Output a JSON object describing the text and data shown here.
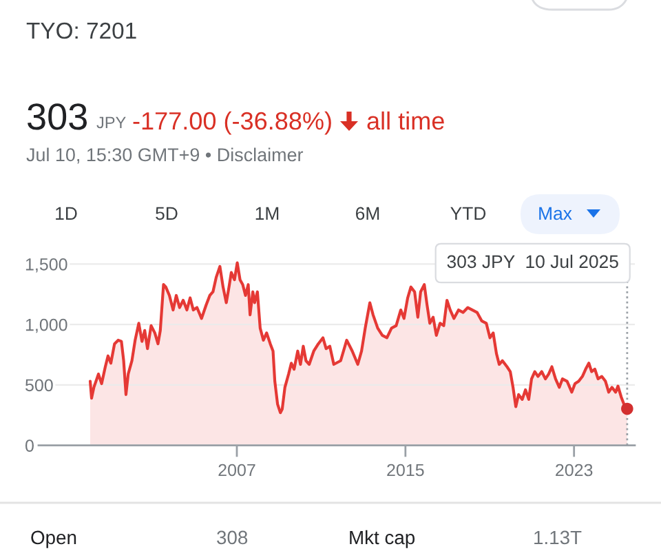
{
  "chart_data": {
    "type": "area",
    "title": "TYO: 7201",
    "annotations": [
      "303",
      "JPY",
      "-177.00 (-36.88%)",
      "all time",
      "Jul 10, 15:30 GMT+9 • Disclaimer",
      "1D",
      "5D",
      "1M",
      "6M",
      "YTD",
      "Max",
      "Open",
      "308",
      "Mkt cap",
      "1.13T"
    ],
    "series": [
      {
        "color": "#e53935",
        "x": [
          "2000-01-16",
          "2000-02-09",
          "2000-03-20",
          "2000-06-07",
          "2000-08-01",
          "2000-10-04",
          "2000-11-20",
          "2001-01-08",
          "2001-03-13",
          "2001-05-15",
          "2001-07-10",
          "2001-08-18",
          "2001-09-27",
          "2001-11-05",
          "2002-01-08",
          "2002-03-05",
          "2002-05-07",
          "2002-07-02",
          "2002-08-18",
          "2002-10-05",
          "2002-12-07",
          "2003-02-09",
          "2003-04-05",
          "2003-05-15",
          "2003-07-10",
          "2003-08-18",
          "2003-10-20",
          "2003-12-23",
          "2004-02-16",
          "2004-04-13",
          "2004-06-15",
          "2004-08-18",
          "2004-10-13",
          "2004-12-07",
          "2005-02-09",
          "2005-04-29",
          "2005-07-17",
          "2005-09-19",
          "2005-11-13",
          "2006-01-08",
          "2006-03-13",
          "2006-05-07",
          "2006-07-02",
          "2006-08-18",
          "2006-09-27",
          "2006-11-21",
          "2007-01-08",
          "2007-02-25",
          "2007-04-13",
          "2007-05-31",
          "2007-07-17",
          "2007-08-18",
          "2007-10-05",
          "2007-11-05",
          "2007-12-23",
          "2008-02-09",
          "2008-04-05",
          "2008-05-31",
          "2008-08-02",
          "2008-09-19",
          "2008-10-20",
          "2008-12-07",
          "2009-01-24",
          "2009-02-25",
          "2009-04-13",
          "2009-06-16",
          "2009-08-02",
          "2009-09-19",
          "2009-11-21",
          "2010-01-08",
          "2010-02-25",
          "2010-04-13",
          "2010-06-08",
          "2010-08-26",
          "2010-11-13",
          "2011-02-01",
          "2011-03-28",
          "2011-05-31",
          "2011-08-08",
          "2011-12-05",
          "2012-03-19",
          "2012-06-23",
          "2012-09-27",
          "2012-12-01",
          "2013-02-03",
          "2013-04-24",
          "2013-06-19",
          "2013-09-07",
          "2013-11-26",
          "2014-02-14",
          "2014-05-05",
          "2014-07-24",
          "2014-10-12",
          "2014-12-07",
          "2015-02-09",
          "2015-04-06",
          "2015-06-09",
          "2015-08-04",
          "2015-09-21",
          "2015-11-24",
          "2016-01-11",
          "2016-02-28",
          "2016-04-25",
          "2016-06-20",
          "2016-08-23",
          "2016-10-26",
          "2016-12-21",
          "2017-02-15",
          "2017-04-21",
          "2017-07-10",
          "2017-09-27",
          "2017-12-17",
          "2018-03-07",
          "2018-05-26",
          "2018-08-14",
          "2018-11-02",
          "2019-01-05",
          "2019-03-02",
          "2019-04-27",
          "2019-06-14",
          "2019-08-09",
          "2019-10-28",
          "2019-12-23",
          "2020-02-09",
          "2020-03-28",
          "2020-05-15",
          "2020-07-18",
          "2020-09-12",
          "2020-11-07",
          "2020-12-26",
          "2021-02-20",
          "2021-04-17",
          "2021-06-20",
          "2021-08-23",
          "2021-10-18",
          "2021-12-13",
          "2022-02-15",
          "2022-04-21",
          "2022-06-15",
          "2022-09-03",
          "2022-11-23",
          "2023-01-18",
          "2023-03-23",
          "2023-05-26",
          "2023-07-21",
          "2023-09-15",
          "2023-11-02",
          "2023-12-28",
          "2024-02-22",
          "2024-04-26",
          "2024-06-29",
          "2024-08-24",
          "2024-10-19",
          "2024-12-22",
          "2025-02-01",
          "2025-03-29",
          "2025-05-16",
          "2025-07-10"
        ],
        "values": [
          530,
          390,
          480,
          590,
          510,
          650,
          740,
          680,
          840,
          870,
          860,
          700,
          420,
          590,
          700,
          870,
          1010,
          860,
          950,
          800,
          990,
          930,
          840,
          950,
          1330,
          1310,
          1240,
          1120,
          1240,
          1140,
          1200,
          1120,
          1220,
          1120,
          1140,
          1050,
          1160,
          1240,
          1270,
          1390,
          1480,
          1310,
          1180,
          1310,
          1430,
          1370,
          1510,
          1370,
          1330,
          1240,
          1330,
          1080,
          1270,
          1180,
          1270,
          970,
          870,
          930,
          840,
          780,
          530,
          340,
          270,
          300,
          480,
          590,
          680,
          630,
          780,
          670,
          820,
          700,
          670,
          780,
          840,
          890,
          800,
          820,
          670,
          700,
          870,
          780,
          670,
          780,
          970,
          1180,
          1080,
          970,
          910,
          890,
          970,
          990,
          1120,
          1050,
          1220,
          1310,
          1270,
          1060,
          1270,
          1330,
          1160,
          1010,
          1060,
          910,
          1010,
          990,
          1200,
          1120,
          1050,
          1120,
          1100,
          1140,
          1120,
          1100,
          1030,
          1010,
          890,
          930,
          760,
          670,
          700,
          650,
          610,
          480,
          320,
          420,
          380,
          460,
          380,
          550,
          610,
          570,
          610,
          550,
          590,
          650,
          550,
          480,
          550,
          530,
          440,
          510,
          530,
          570,
          630,
          680,
          610,
          630,
          550,
          570,
          530,
          440,
          480,
          440,
          490,
          400,
          340,
          303
        ]
      },
      {
        "type": "scatter",
        "color": "#d32f2f",
        "marker": "circle",
        "x": [
          "2025-07-10"
        ],
        "values": [
          303
        ]
      }
    ],
    "xlim": [
      "1997-08-04",
      "2025-11-20"
    ],
    "xticks": [
      {
        "value": "2007-01-01",
        "label": "2007"
      },
      {
        "value": "2015-01-01",
        "label": "2015"
      },
      {
        "value": "2023-01-01",
        "label": "2023"
      }
    ],
    "ylim": [
      0,
      1600
    ],
    "yticks": [
      0,
      500,
      {
        "value": 1000,
        "label": "1,000"
      },
      {
        "value": 1500,
        "label": "1,500"
      }
    ],
    "grid": "y",
    "ref_lines": [
      {
        "axis": "x",
        "value": "2025-07-10",
        "label": "303 JPY  10 Jul 2025",
        "color": "#9aa0a6",
        "line_style": "dotted"
      }
    ]
  }
}
